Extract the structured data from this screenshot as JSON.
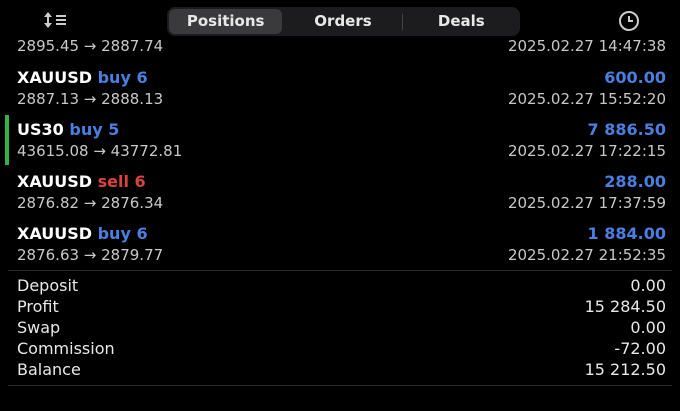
{
  "tabs": [
    {
      "label": "Positions",
      "active": true
    },
    {
      "label": "Orders",
      "active": false
    },
    {
      "label": "Deals",
      "active": false
    }
  ],
  "icons": {
    "left": "sort-list-icon",
    "right": "clock-icon"
  },
  "colors": {
    "buy": "#4a7fe0",
    "sell": "#d9443f",
    "profit": "#4a7fe0",
    "marker": "#2fb34a"
  },
  "deals": [
    {
      "prices": "2895.45 → 2887.74",
      "time": "2025.02.27 14:47:38"
    },
    {
      "symbol": "XAUUSD",
      "side": "buy 6",
      "type": "buy",
      "profit": "600.00",
      "prices": "2887.13 → 2888.13",
      "time": "2025.02.27 15:52:20"
    },
    {
      "symbol": "US30",
      "side": "buy 5",
      "type": "buy",
      "profit": "7 886.50",
      "prices": "43615.08 → 43772.81",
      "time": "2025.02.27 17:22:15",
      "highlighted": true
    },
    {
      "symbol": "XAUUSD",
      "side": "sell 6",
      "type": "sell",
      "profit": "288.00",
      "prices": "2876.82 → 2876.34",
      "time": "2025.02.27 17:37:59"
    },
    {
      "symbol": "XAUUSD",
      "side": "buy 6",
      "type": "buy",
      "profit": "1 884.00",
      "prices": "2876.63 → 2879.77",
      "time": "2025.02.27 21:52:35"
    }
  ],
  "summary": [
    {
      "label": "Deposit",
      "value": "0.00"
    },
    {
      "label": "Profit",
      "value": "15 284.50"
    },
    {
      "label": "Swap",
      "value": "0.00"
    },
    {
      "label": "Commission",
      "value": "-72.00"
    },
    {
      "label": "Balance",
      "value": "15 212.50"
    }
  ]
}
